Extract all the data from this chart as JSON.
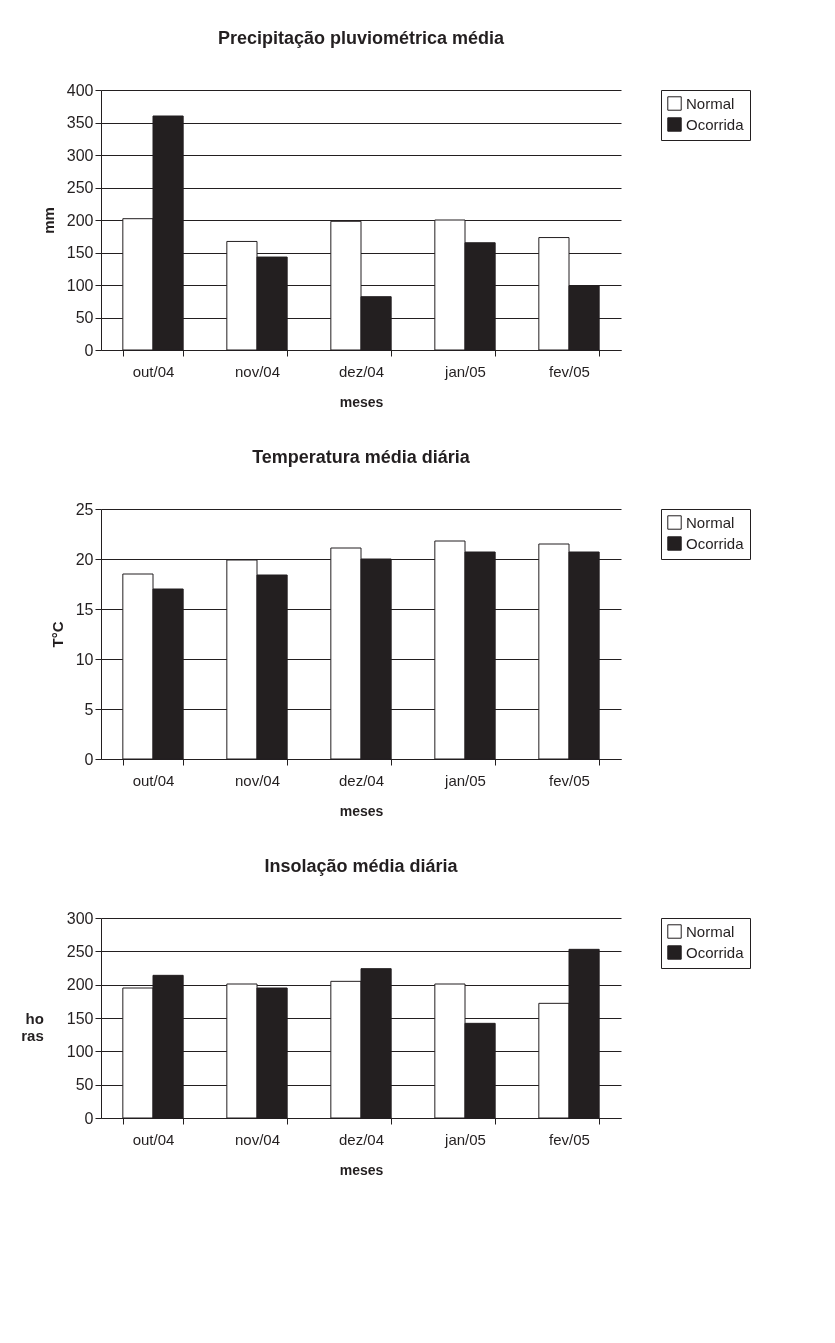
{
  "chart_data": [
    {
      "type": "bar",
      "title": "Precipitação pluviométrica média",
      "xlabel": "meses",
      "ylabel": "mm",
      "categories": [
        "out/04",
        "nov/04",
        "dez/04",
        "jan/05",
        "fev/05"
      ],
      "series": [
        {
          "name": "Normal",
          "color": "#ffffff",
          "values": [
            202,
            167,
            198,
            200,
            173
          ]
        },
        {
          "name": "Ocorrida",
          "color": "#231f20",
          "values": [
            360,
            143,
            82,
            165,
            99
          ]
        }
      ],
      "ylim": [
        0,
        400
      ],
      "yticks": [
        0,
        50,
        100,
        150,
        200,
        250,
        300,
        350,
        400
      ],
      "grid": "y",
      "legend": "right"
    },
    {
      "type": "bar",
      "title": "Temperatura média diária",
      "xlabel": "meses",
      "ylabel": "T°C",
      "categories": [
        "out/04",
        "nov/04",
        "dez/04",
        "jan/05",
        "fev/05"
      ],
      "series": [
        {
          "name": "Normal",
          "color": "#ffffff",
          "values": [
            18.5,
            19.9,
            21.1,
            21.8,
            21.5
          ]
        },
        {
          "name": "Ocorrida",
          "color": "#231f20",
          "values": [
            17,
            18.4,
            20,
            20.7,
            20.7
          ]
        }
      ],
      "ylim": [
        0,
        25
      ],
      "yticks": [
        0,
        5,
        10,
        15,
        20,
        25
      ],
      "grid": "y",
      "legend": "right"
    },
    {
      "type": "bar",
      "title": "Insolação média diária",
      "xlabel": "meses",
      "ylabel": "ho\nras",
      "categories": [
        "out/04",
        "nov/04",
        "dez/04",
        "jan/05",
        "fev/05"
      ],
      "series": [
        {
          "name": "Normal",
          "color": "#ffffff",
          "values": [
            195,
            201,
            205,
            201,
            172
          ]
        },
        {
          "name": "Ocorrida",
          "color": "#231f20",
          "values": [
            214,
            195,
            224,
            142,
            253
          ]
        }
      ],
      "ylim": [
        0,
        300
      ],
      "yticks": [
        0,
        50,
        100,
        150,
        200,
        250,
        300
      ],
      "grid": "y",
      "legend": "right"
    }
  ]
}
